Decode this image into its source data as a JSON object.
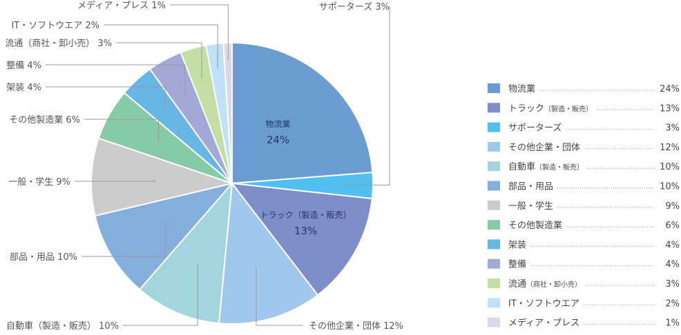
{
  "chart_data": {
    "type": "pie",
    "unit": "%",
    "legend_position": "right",
    "slices": [
      {
        "label": "物流業",
        "legend_main": "物流業",
        "legend_sub": "",
        "callout": "",
        "value": 24,
        "color": "#6a9bd1"
      },
      {
        "label": "サポーターズ",
        "legend_main": "サポーターズ",
        "legend_sub": "",
        "callout": "サポーターズ 3%",
        "value": 3,
        "color": "#52c0ee"
      },
      {
        "label": "トラック（製造・販売）",
        "legend_main": "トラック",
        "legend_sub": "（製造・販売）",
        "callout": "",
        "value": 13,
        "color": "#7f8ec8"
      },
      {
        "label": "その他企業・団体",
        "legend_main": "その他企業・団体",
        "legend_sub": "",
        "callout": "その他企業・団体 12%",
        "value": 12,
        "color": "#9fc8ec"
      },
      {
        "label": "自動車（製造・販売）",
        "legend_main": "自動車",
        "legend_sub": "（製造・販売）",
        "callout": "自動車（製造・販売） 10%",
        "value": 10,
        "color": "#a3d5dd"
      },
      {
        "label": "部品・用品",
        "legend_main": "部品・用品",
        "legend_sub": "",
        "callout": "部品・用品 10%",
        "value": 10,
        "color": "#84afdd"
      },
      {
        "label": "一般・学生",
        "legend_main": "一般・学生",
        "legend_sub": "",
        "callout": "一般・学生 9%",
        "value": 9,
        "color": "#cccccc"
      },
      {
        "label": "その他製造業",
        "legend_main": "その他製造業",
        "legend_sub": "",
        "callout": "その他製造業 6%",
        "value": 6,
        "color": "#86caa6"
      },
      {
        "label": "架装",
        "legend_main": "架装",
        "legend_sub": "",
        "callout": "架装 4%",
        "value": 4,
        "color": "#68b6e6"
      },
      {
        "label": "整備",
        "legend_main": "整備",
        "legend_sub": "",
        "callout": "整備 4%",
        "value": 4,
        "color": "#a2a9d6"
      },
      {
        "label": "流通（商社・卸小売）",
        "legend_main": "流通",
        "legend_sub": "（商社・卸小売）",
        "callout": "流通（商社・卸小売） 3%",
        "value": 3,
        "color": "#c3dfa6"
      },
      {
        "label": "IT・ソフトウエア",
        "legend_main": "IT・ソフトウエア",
        "legend_sub": "",
        "callout": "IT・ソフトウエア 2%",
        "value": 2,
        "color": "#bde2f8"
      },
      {
        "label": "メディア・プレス",
        "legend_main": "メディア・プレス",
        "legend_sub": "",
        "callout": "メディア・プレス 1%",
        "value": 1,
        "color": "#e0d6ec"
      }
    ],
    "inside_labels": [
      {
        "label": "物流業",
        "value": "24%"
      },
      {
        "label": "トラック（製造・販売）",
        "value": "13%"
      }
    ],
    "legend_values": [
      "24%",
      "13%",
      "3%",
      "12%",
      "10%",
      "10%",
      "9%",
      "6%",
      "4%",
      "4%",
      "3%",
      "2%",
      "1%"
    ],
    "legend_order": [
      0,
      2,
      1,
      3,
      4,
      5,
      6,
      7,
      8,
      9,
      10,
      11,
      12
    ]
  }
}
